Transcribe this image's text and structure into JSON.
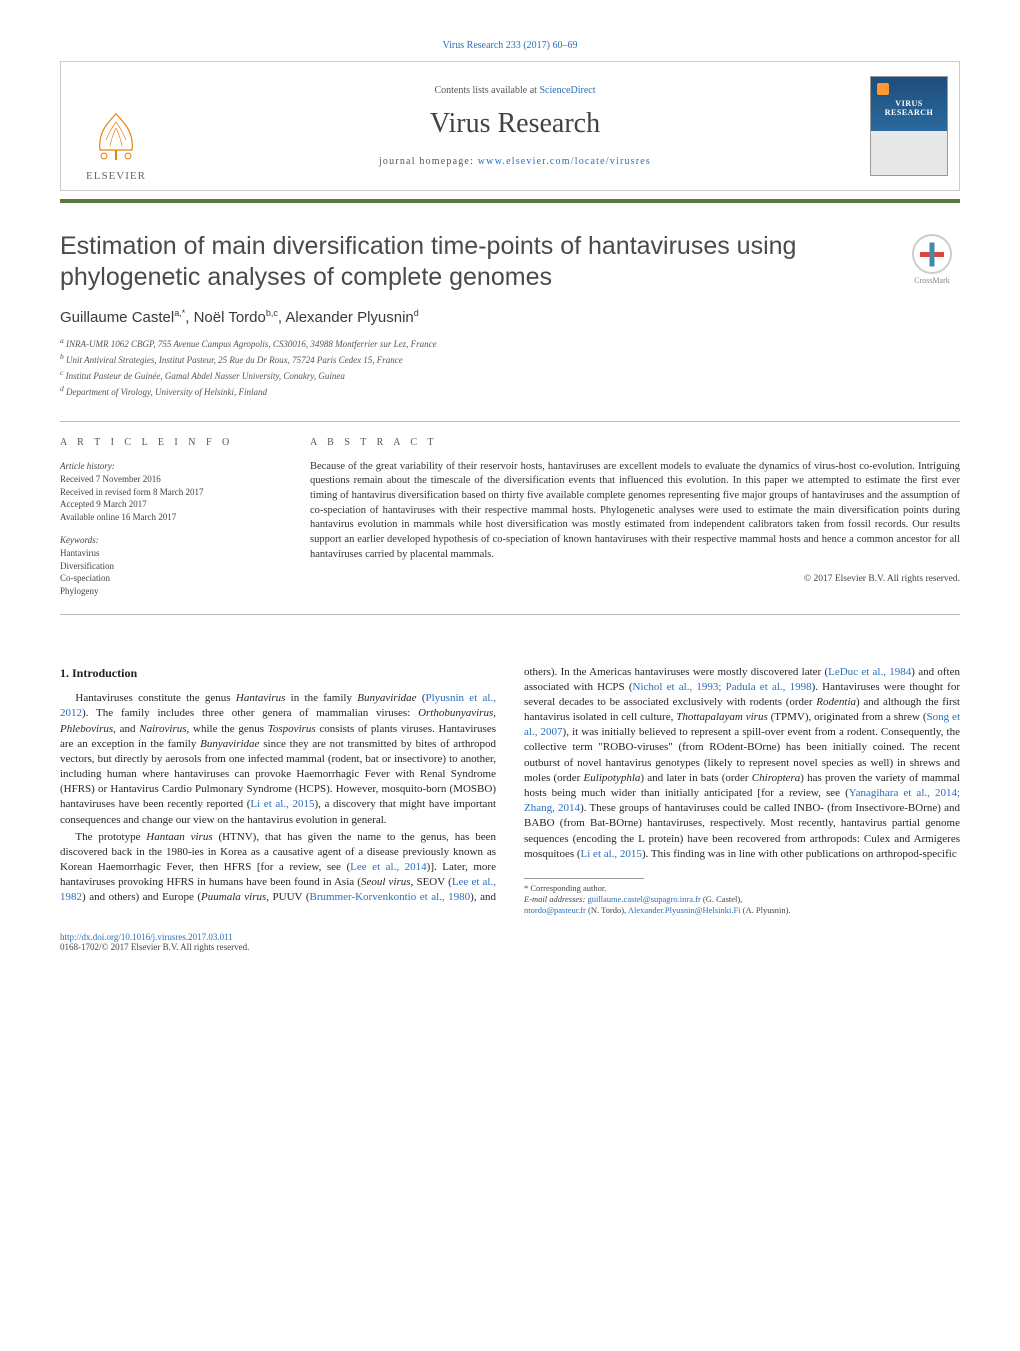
{
  "journal_ref": "Virus Research 233 (2017) 60–69",
  "header": {
    "contents_prefix": "Contents lists available at ",
    "contents_link": "ScienceDirect",
    "journal_title": "Virus Research",
    "homepage_prefix": "journal homepage: ",
    "homepage_link": "www.elsevier.com/locate/virusres",
    "publisher": "ELSEVIER",
    "cover_text": "VIRUS RESEARCH",
    "crossmark_label": "CrossMark"
  },
  "colors": {
    "link": "#2a6ebb",
    "header_bar": "#5a7a3a",
    "text": "#202020",
    "muted": "#555555",
    "border": "#cccccc"
  },
  "article": {
    "title": "Estimation of main diversification time-points of hantaviruses using phylogenetic analyses of complete genomes",
    "authors_html": "Guillaume Castel<sup>a,*</sup>, Noël Tordo<sup>b,c</sup>, Alexander Plyusnin<sup>d</sup>",
    "affiliations": [
      "a INRA-UMR 1062 CBGP, 755 Avenue Campus Agropolis, CS30016, 34988 Montferrier sur Lez, France",
      "b Unit Antiviral Strategies, Institut Pasteur, 25 Rue du Dr Roux, 75724 Paris Cedex 15, France",
      "c Institut Pasteur de Guinée, Gamal Abdel Nasser University, Conakry, Guinea",
      "d Department of Virology, University of Helsinki, Finland"
    ]
  },
  "info": {
    "heading": "a r t i c l e   i n f o",
    "history_label": "Article history:",
    "history": [
      "Received 7 November 2016",
      "Received in revised form 8 March 2017",
      "Accepted 9 March 2017",
      "Available online 16 March 2017"
    ],
    "keywords_label": "Keywords:",
    "keywords": [
      "Hantavirus",
      "Diversification",
      "Co-speciation",
      "Phylogeny"
    ]
  },
  "abstract": {
    "heading": "a b s t r a c t",
    "text": "Because of the great variability of their reservoir hosts, hantaviruses are excellent models to evaluate the dynamics of virus-host co-evolution. Intriguing questions remain about the timescale of the diversification events that influenced this evolution. In this paper we attempted to estimate the first ever timing of hantavirus diversification based on thirty five available complete genomes representing five major groups of hantaviruses and the assumption of co-speciation of hantaviruses with their respective mammal hosts. Phylogenetic analyses were used to estimate the main diversification points during hantavirus evolution in mammals while host diversification was mostly estimated from independent calibrators taken from fossil records. Our results support an earlier developed hypothesis of co-speciation of known hantaviruses with their respective mammal hosts and hence a common ancestor for all hantaviruses carried by placental mammals.",
    "copyright": "© 2017 Elsevier B.V. All rights reserved."
  },
  "body": {
    "section_heading": "1. Introduction",
    "p1_pre": "Hantaviruses constitute the genus ",
    "p1_i1": "Hantavirus",
    "p1_mid1": " in the family ",
    "p1_i2": "Bunyaviridae",
    "p1_mid2": " (",
    "p1_link1": "Plyusnin et al., 2012",
    "p1_mid3": "). The family includes three other genera of mammalian viruses: ",
    "p1_i3": "Orthobunyavirus, Phlebovirus,",
    "p1_mid4": " and ",
    "p1_i4": "Nairovirus,",
    "p1_mid5": " while the genus ",
    "p1_i5": "Tospovirus",
    "p1_mid6": " consists of plants viruses. Hantaviruses are an exception in the family ",
    "p1_i6": "Bunyaviridae",
    "p1_mid7": " since they are not transmitted by bites of arthropod vectors, but directly by aerosols from one infected mammal (rodent, bat or insectivore) to another, including human where hantaviruses can provoke Haemorrhagic Fever with Renal Syndrome (HFRS) or Hantavirus Cardio Pulmonary Syndrome (HCPS). However, mosquito-born (MOSBO) hantaviruses have been recently reported (",
    "p1_link2": "Li et al., 2015",
    "p1_end": "), a discovery that might have important consequences and change our view on the hantavirus evolution in general.",
    "p2_pre": "The prototype ",
    "p2_i1": "Hantaan virus",
    "p2_mid1": " (HTNV), that has given the name to the genus, has been discovered back in the 1980-ies in Korea as a causative agent of a disease previously known as Korean Haemorrhagic Fever, then HFRS [for a review, see (",
    "p2_link1": "Lee et al., 2014",
    "p2_mid2": ")]. Later, more hantaviruses provoking HFRS in humans have been found in Asia (",
    "p2_i2": "Seoul virus",
    "p2_mid3": ", SEOV (",
    "p2_link2": "Lee et al., 1982",
    "p2_mid4": ") and others) and Europe (",
    "p2_i3": "Puumala virus",
    "p2_mid5": ", PUUV (",
    "p2_link3": "Brummer-Korvenkontio et al., 1980",
    "p2_mid6": "), and others). In the Americas hantaviruses were mostly discovered later (",
    "p2_link4": "LeDuc et al., 1984",
    "p2_mid7": ") and often associated with HCPS (",
    "p2_link5": "Nichol et al., 1993; Padula et al., 1998",
    "p2_mid8": "). Hantaviruses were thought for several decades to be associated exclusively with rodents (order ",
    "p2_i4": "Rodentia",
    "p2_mid9": ") and although the first hantavirus isolated in cell culture, ",
    "p2_i5": "Thottapalayam virus",
    "p2_mid10": " (TPMV), originated from a shrew (",
    "p2_link6": "Song et al., 2007",
    "p2_mid11": "), it was initially believed to represent a spill-over event from a rodent. Consequently, the collective term \"ROBO-viruses\" (from ROdent-BOrne) has been initially coined. The recent outburst of novel hantavirus genotypes (likely to represent novel species as well) in shrews and moles (order ",
    "p2_i6": "Eulipotyphla",
    "p2_mid12": ") and later in bats (order ",
    "p2_i7": "Chiroptera",
    "p2_mid13": ") has proven the variety of mammal hosts being much wider than initially anticipated [for a review, see (",
    "p2_link7": "Yanagihara et al., 2014; Zhang, 2014",
    "p2_mid14": "). These groups of hantaviruses could be called INBO- (from Insectivore-BOrne) and BABO (from Bat-BOrne) hantaviruses, respectively. Most recently, hantavirus partial genome sequences (encoding the L protein) have been recovered from arthropods: Culex and Armigeres mosquitoes (",
    "p2_link8": "Li et al., 2015",
    "p2_end": "). This finding was in line with other publications on arthropod-specific"
  },
  "footnotes": {
    "corresponding": "* Corresponding author.",
    "emails_label": "E-mail addresses: ",
    "email1": "guillaume.castel@supagro.inra.fr",
    "email1_name": " (G. Castel), ",
    "email2": "ntordo@pasteur.fr",
    "email2_name": " (N. Tordo), ",
    "email3": "Alexander.Plyusnin@Helsinki.Fi",
    "email3_name": " (A. Plyusnin)."
  },
  "footer": {
    "doi": "http://dx.doi.org/10.1016/j.virusres.2017.03.011",
    "issn_line": "0168-1702/© 2017 Elsevier B.V. All rights reserved."
  }
}
